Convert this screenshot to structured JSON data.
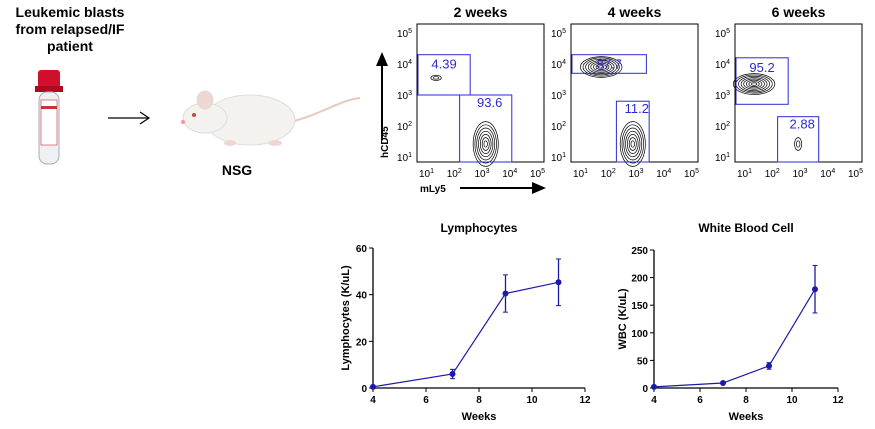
{
  "schematic": {
    "source_label": "Leukemic blasts from relapsed/IF patient",
    "mouse_label": "NSG",
    "icons": [
      "blood-tube-icon",
      "arrow-right-icon",
      "mouse-icon"
    ]
  },
  "flow_plots": {
    "xlabel": "mLy5",
    "ylabel": "hCD45",
    "tick_labels": [
      "10",
      "10",
      "10",
      "10",
      "10"
    ],
    "tick_exponents": [
      "1",
      "2",
      "3",
      "4",
      "5"
    ],
    "gate_color": "#2b2bd0",
    "panels": [
      {
        "title": "2 weeks",
        "gates": [
          {
            "label": "4.39",
            "x": [
              1,
              2.7
            ],
            "y": [
              3,
              4.3
            ]
          },
          {
            "label": "93.6",
            "x": [
              2.5,
              4.2
            ],
            "y": [
              1,
              3
            ]
          }
        ]
      },
      {
        "title": "4 weeks",
        "gates": [
          {
            "label": "87.7",
            "x": [
              1,
              3.5
            ],
            "y": [
              3.7,
              4.3
            ]
          },
          {
            "label": "11.2",
            "x": [
              2.6,
              3.6
            ],
            "y": [
              1,
              2.8
            ]
          }
        ]
      },
      {
        "title": "6 weeks",
        "gates": [
          {
            "label": "95.2",
            "x": [
              1,
              2.7
            ],
            "y": [
              2.7,
              4.2
            ]
          },
          {
            "label": "2.88",
            "x": [
              2.5,
              3.8
            ],
            "y": [
              1,
              2.3
            ]
          }
        ]
      }
    ]
  },
  "chart_data": [
    {
      "type": "line",
      "title": "Lymphocytes",
      "xlabel": "Weeks",
      "ylabel": "Lymphocytes (K/uL)",
      "xlim": [
        4,
        12
      ],
      "ylim": [
        0,
        60
      ],
      "xticks": [
        4,
        6,
        8,
        10,
        12
      ],
      "yticks": [
        0,
        20,
        40,
        60
      ],
      "color": "#1a1aa8",
      "x": [
        4,
        7,
        9,
        11
      ],
      "y": [
        0.5,
        6,
        40.5,
        45.3
      ],
      "error": [
        0.5,
        2,
        8,
        10
      ]
    },
    {
      "type": "line",
      "title": "White Blood Cell",
      "xlabel": "Weeks",
      "ylabel": "WBC (K/uL)",
      "xlim": [
        4,
        12
      ],
      "ylim": [
        0,
        250
      ],
      "xticks": [
        4,
        6,
        8,
        10,
        12
      ],
      "yticks": [
        0,
        50,
        100,
        150,
        200,
        250
      ],
      "color": "#1a1aa8",
      "x": [
        4,
        7,
        9,
        11
      ],
      "y": [
        2,
        9,
        40,
        179
      ],
      "error": [
        1,
        2,
        6,
        43
      ]
    }
  ]
}
